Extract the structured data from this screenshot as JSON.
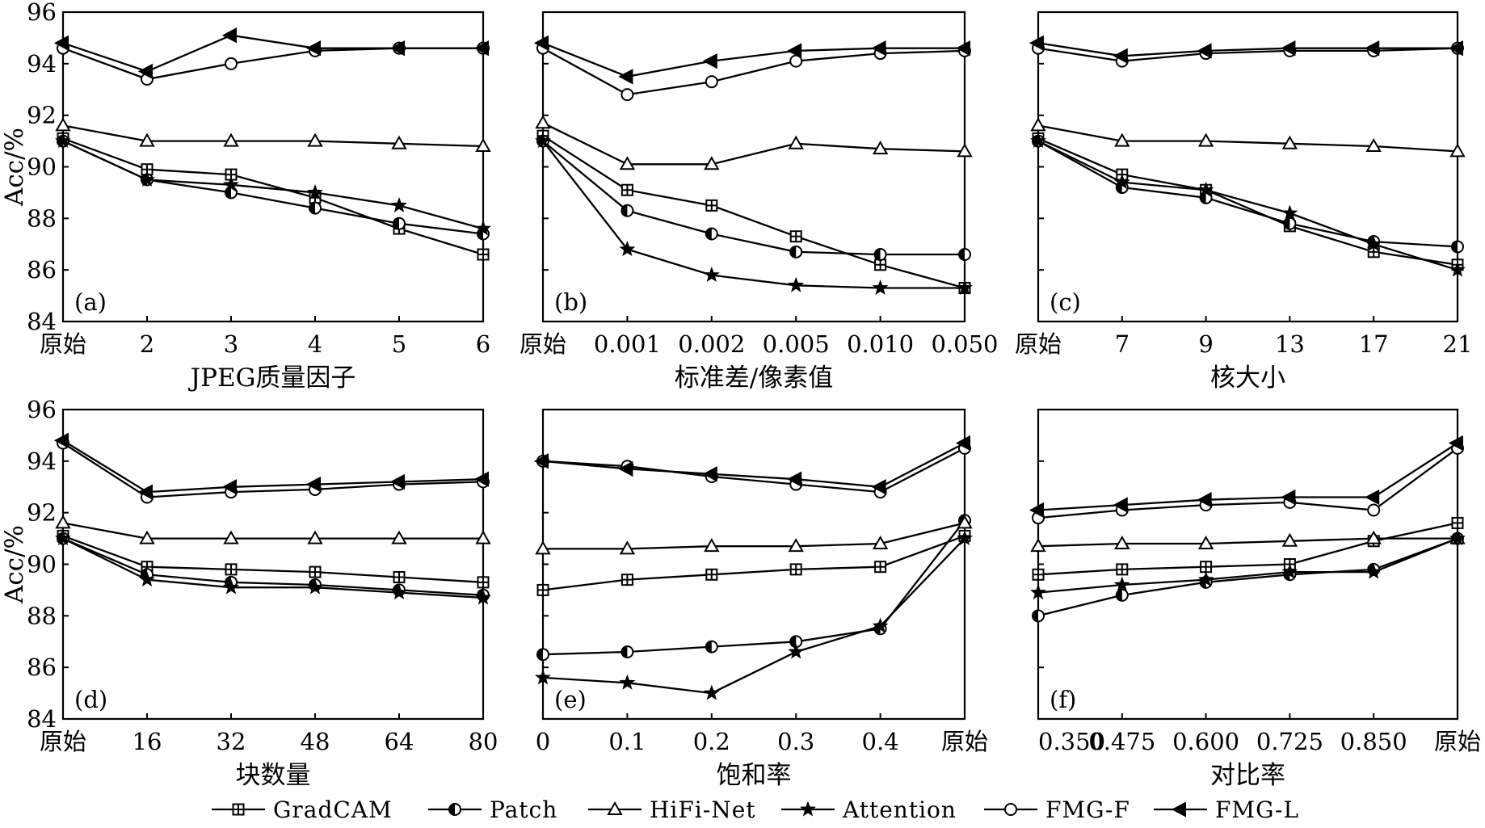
{
  "chart_data": {
    "type": "line",
    "legend_placement": "bottom",
    "series_names": [
      "GradCAM",
      "Patch",
      "HiFi-Net",
      "Attention",
      "FMG-F",
      "FMG-L"
    ],
    "markers": {
      "GradCAM": "square-plus",
      "Patch": "half-filled-circle",
      "HiFi-Net": "open-triangle",
      "Attention": "filled-star",
      "FMG-F": "open-circle",
      "FMG-L": "filled-left-triangle"
    },
    "ylabel": "Acc/%",
    "ylim": [
      84,
      96
    ],
    "yticks": [
      "84",
      "86",
      "88",
      "90",
      "92",
      "94",
      "96"
    ],
    "panels": [
      {
        "id": "a",
        "label": "(a)",
        "xlabel": "JPEG质量因子",
        "categories": [
          "原始",
          "2",
          "3",
          "4",
          "5",
          "6"
        ],
        "series": [
          {
            "name": "GradCAM",
            "values": [
              91.1,
              89.9,
              89.7,
              88.8,
              87.6,
              86.6
            ]
          },
          {
            "name": "Patch",
            "values": [
              91.0,
              89.5,
              89.0,
              88.4,
              87.8,
              87.4
            ]
          },
          {
            "name": "HiFi-Net",
            "values": [
              91.6,
              91.0,
              91.0,
              91.0,
              90.9,
              90.8
            ]
          },
          {
            "name": "Attention",
            "values": [
              91.0,
              89.5,
              89.3,
              89.0,
              88.5,
              87.6
            ]
          },
          {
            "name": "FMG-F",
            "values": [
              94.6,
              93.4,
              94.0,
              94.5,
              94.6,
              94.6
            ]
          },
          {
            "name": "FMG-L",
            "values": [
              94.8,
              93.7,
              95.1,
              94.6,
              94.6,
              94.6
            ]
          }
        ]
      },
      {
        "id": "b",
        "label": "(b)",
        "xlabel": "标准差/像素值",
        "categories": [
          "原始",
          "0.001",
          "0.002",
          "0.005",
          "0.010",
          "0.050"
        ],
        "series": [
          {
            "name": "GradCAM",
            "values": [
              91.2,
              89.1,
              88.5,
              87.3,
              86.2,
              85.3
            ]
          },
          {
            "name": "Patch",
            "values": [
              91.0,
              88.3,
              87.4,
              86.7,
              86.6,
              86.6
            ]
          },
          {
            "name": "HiFi-Net",
            "values": [
              91.7,
              90.1,
              90.1,
              90.9,
              90.7,
              90.6
            ]
          },
          {
            "name": "Attention",
            "values": [
              91.0,
              86.8,
              85.8,
              85.4,
              85.3,
              85.3
            ]
          },
          {
            "name": "FMG-F",
            "values": [
              94.6,
              92.8,
              93.3,
              94.1,
              94.4,
              94.5
            ]
          },
          {
            "name": "FMG-L",
            "values": [
              94.8,
              93.5,
              94.1,
              94.5,
              94.6,
              94.6
            ]
          }
        ]
      },
      {
        "id": "c",
        "label": "(c)",
        "xlabel": "核大小",
        "categories": [
          "原始",
          "7",
          "9",
          "13",
          "17",
          "21"
        ],
        "series": [
          {
            "name": "GradCAM",
            "values": [
              91.1,
              89.7,
              89.1,
              87.7,
              86.7,
              86.2
            ]
          },
          {
            "name": "Patch",
            "values": [
              91.0,
              89.2,
              88.8,
              87.8,
              87.1,
              86.9
            ]
          },
          {
            "name": "HiFi-Net",
            "values": [
              91.6,
              91.0,
              91.0,
              90.9,
              90.8,
              90.6
            ]
          },
          {
            "name": "Attention",
            "values": [
              91.0,
              89.4,
              89.1,
              88.2,
              87.0,
              86.0
            ]
          },
          {
            "name": "FMG-F",
            "values": [
              94.6,
              94.1,
              94.4,
              94.5,
              94.5,
              94.6
            ]
          },
          {
            "name": "FMG-L",
            "values": [
              94.8,
              94.3,
              94.5,
              94.6,
              94.6,
              94.6
            ]
          }
        ]
      },
      {
        "id": "d",
        "label": "(d)",
        "xlabel": "块数量",
        "categories": [
          "原始",
          "16",
          "32",
          "48",
          "64",
          "80"
        ],
        "series": [
          {
            "name": "GradCAM",
            "values": [
              91.1,
              89.9,
              89.8,
              89.7,
              89.5,
              89.3
            ]
          },
          {
            "name": "Patch",
            "values": [
              91.0,
              89.6,
              89.3,
              89.2,
              89.0,
              88.8
            ]
          },
          {
            "name": "HiFi-Net",
            "values": [
              91.6,
              91.0,
              91.0,
              91.0,
              91.0,
              91.0
            ]
          },
          {
            "name": "Attention",
            "values": [
              91.0,
              89.4,
              89.1,
              89.1,
              88.9,
              88.7
            ]
          },
          {
            "name": "FMG-F",
            "values": [
              94.7,
              92.6,
              92.8,
              92.9,
              93.1,
              93.2
            ]
          },
          {
            "name": "FMG-L",
            "values": [
              94.8,
              92.8,
              93.0,
              93.1,
              93.2,
              93.3
            ]
          }
        ]
      },
      {
        "id": "e",
        "label": "(e)",
        "xlabel": "饱和率",
        "categories": [
          "0",
          "0.1",
          "0.2",
          "0.3",
          "0.4",
          "原始"
        ],
        "series": [
          {
            "name": "GradCAM",
            "values": [
              89.0,
              89.4,
              89.6,
              89.8,
              89.9,
              91.1
            ]
          },
          {
            "name": "Patch",
            "values": [
              86.5,
              86.6,
              86.8,
              87.0,
              87.5,
              91.7
            ]
          },
          {
            "name": "HiFi-Net",
            "values": [
              90.6,
              90.6,
              90.7,
              90.7,
              90.8,
              91.6
            ]
          },
          {
            "name": "Attention",
            "values": [
              85.6,
              85.4,
              85.0,
              86.6,
              87.6,
              91.0
            ]
          },
          {
            "name": "FMG-F",
            "values": [
              94.0,
              93.8,
              93.4,
              93.1,
              92.8,
              94.5
            ]
          },
          {
            "name": "FMG-L",
            "values": [
              94.0,
              93.7,
              93.5,
              93.3,
              93.0,
              94.7
            ]
          }
        ]
      },
      {
        "id": "f",
        "label": "(f)",
        "xlabel": "对比率",
        "categories": [
          "0.350",
          "0.475",
          "0.600",
          "0.725",
          "0.850",
          "原始"
        ],
        "series": [
          {
            "name": "GradCAM",
            "values": [
              89.6,
              89.8,
              89.9,
              90.0,
              90.9,
              91.6
            ]
          },
          {
            "name": "Patch",
            "values": [
              88.0,
              88.8,
              89.3,
              89.6,
              89.8,
              91.0
            ]
          },
          {
            "name": "HiFi-Net",
            "values": [
              90.7,
              90.8,
              90.8,
              90.9,
              91.0,
              91.0
            ]
          },
          {
            "name": "Attention",
            "values": [
              88.9,
              89.2,
              89.4,
              89.7,
              89.7,
              91.0
            ]
          },
          {
            "name": "FMG-F",
            "values": [
              91.8,
              92.1,
              92.3,
              92.4,
              92.1,
              94.5
            ]
          },
          {
            "name": "FMG-L",
            "values": [
              92.1,
              92.3,
              92.5,
              92.6,
              92.6,
              94.7
            ]
          }
        ]
      }
    ]
  }
}
